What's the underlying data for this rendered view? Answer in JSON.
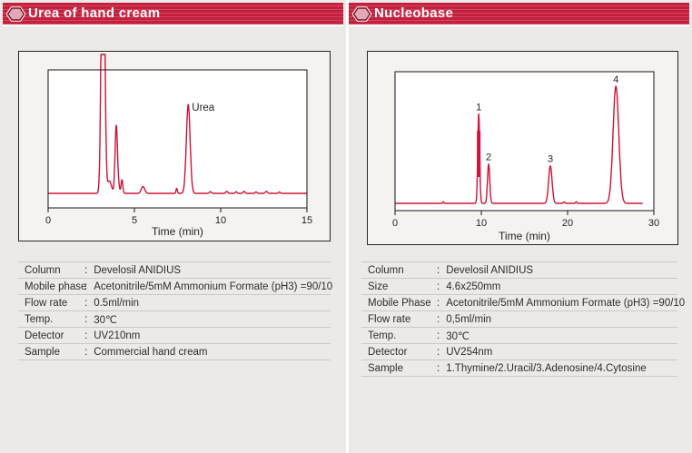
{
  "colors": {
    "header_red": "#c41f3e",
    "trace_red": "#cf1236",
    "hexagon_fill": "#e0a9b5",
    "hexagon_outline": "#7c1322"
  },
  "left": {
    "header": {
      "title": "Urea of hand cream"
    },
    "conditions": {
      "colon": ":",
      "rows": [
        {
          "label": "Column",
          "value": "Develosil ANIDIUS"
        },
        {
          "label": "Mobile phase",
          "value": "Acetonitrile/5mM Ammonium Formate (pH3) =90/10"
        },
        {
          "label": "Flow rate",
          "value": "0.5ml/min"
        },
        {
          "label": "Temp.",
          "value": "30℃"
        },
        {
          "label": "Detector",
          "value": "UV210nm"
        },
        {
          "label": "Sample",
          "value": "Commercial hand cream"
        }
      ]
    }
  },
  "right": {
    "header": {
      "title": "Nucleobase"
    },
    "conditions": {
      "colon": ":",
      "rows": [
        {
          "label": "Column",
          "value": "Develosil ANIDIUS"
        },
        {
          "label": "Size",
          "value": "4.6x250mm"
        },
        {
          "label": "Mobile Phase",
          "value": "Acetonitrile/5mM Ammonium Formate (pH3) =90/10"
        },
        {
          "label": "Flow rate",
          "value": "0,5ml/min"
        },
        {
          "label": "Temp.",
          "value": "30℃"
        },
        {
          "label": "Detector",
          "value": "UV254nm"
        },
        {
          "label": "Sample",
          "value": "1.Thymine/2.Uracil/3.Adenosine/4.Cytosine"
        }
      ]
    }
  },
  "chart_data": [
    {
      "type": "line",
      "title": "Urea of hand cream chromatogram",
      "xlabel": "Time (min)",
      "ylabel": "",
      "xlim": [
        0,
        15
      ],
      "xticks": [
        0,
        5,
        10,
        15
      ],
      "ylim": [
        0,
        1
      ],
      "grid": false,
      "legend": "none",
      "trace_color": "#cf1236",
      "t_start": 0,
      "t_end": 15,
      "peaks": [
        {
          "t": 3.18,
          "h": 3.0,
          "sigma": 0.09,
          "note": "solvent front, off-scale (clipped)"
        },
        {
          "t": 3.55,
          "h": 0.1,
          "sigma": 0.12
        },
        {
          "t": 3.95,
          "h": 0.55,
          "sigma": 0.07
        },
        {
          "t": 4.28,
          "h": 0.11,
          "sigma": 0.05
        },
        {
          "t": 5.5,
          "h": 0.055,
          "sigma": 0.1
        },
        {
          "t": 7.45,
          "h": 0.04,
          "sigma": 0.04
        },
        {
          "t": 8.12,
          "h": 0.72,
          "sigma": 0.11
        }
      ],
      "noise": [
        {
          "t": 4.1,
          "h": 0.04,
          "sigma": 0.06
        },
        {
          "t": 9.4,
          "h": 0.013,
          "sigma": 0.07
        },
        {
          "t": 10.35,
          "h": 0.016,
          "sigma": 0.06
        },
        {
          "t": 10.9,
          "h": 0.013,
          "sigma": 0.05
        },
        {
          "t": 11.35,
          "h": 0.016,
          "sigma": 0.06
        },
        {
          "t": 12.05,
          "h": 0.012,
          "sigma": 0.05
        },
        {
          "t": 12.65,
          "h": 0.015,
          "sigma": 0.07
        },
        {
          "t": 13.4,
          "h": 0.011,
          "sigma": 0.05
        }
      ],
      "labels": [
        {
          "text": "Urea",
          "t": 8.12,
          "h": 0.72,
          "placement": "right"
        }
      ]
    },
    {
      "type": "line",
      "title": "Nucleobase chromatogram",
      "xlabel": "Time (min)",
      "ylabel": "",
      "xlim": [
        0,
        30
      ],
      "xticks": [
        0,
        10,
        20,
        30
      ],
      "ylim": [
        0,
        1
      ],
      "grid": false,
      "legend": "none",
      "trace_color": "#cf1236",
      "t_start": 0,
      "t_end": 28.7,
      "peaks": [
        {
          "t": 9.7,
          "h": 0.68,
          "sigma": 0.11,
          "label": "1"
        },
        {
          "t": 10.85,
          "h": 0.3,
          "sigma": 0.13,
          "label": "2"
        },
        {
          "t": 18.0,
          "h": 0.285,
          "sigma": 0.2,
          "label": "3"
        },
        {
          "t": 25.6,
          "h": 0.89,
          "sigma": 0.33,
          "label": "4"
        }
      ],
      "band": {
        "t": 9.7,
        "from": 0.2,
        "to": 0.55,
        "width": 4
      },
      "noise": [
        {
          "t": 5.6,
          "h": 0.013,
          "sigma": 0.06
        },
        {
          "t": 19.6,
          "h": 0.01,
          "sigma": 0.1
        },
        {
          "t": 21.0,
          "h": 0.012,
          "sigma": 0.08
        }
      ],
      "labels": []
    }
  ]
}
